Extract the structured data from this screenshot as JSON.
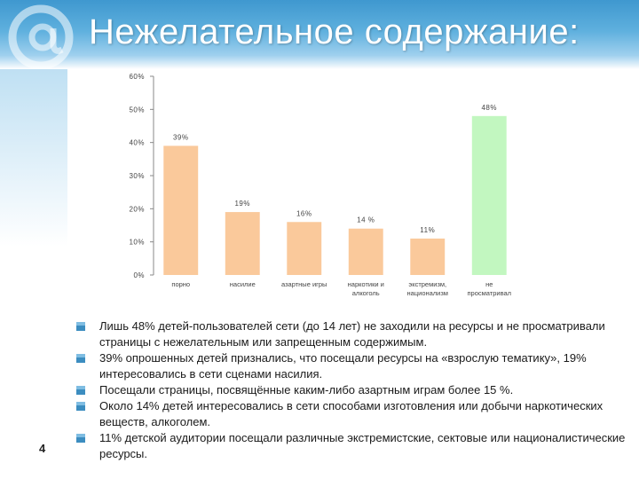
{
  "slide": {
    "title": "Нежелательное содержание:",
    "page_number": "4"
  },
  "bullets": [
    "Лишь 48% детей-пользователей сети (до 14 лет) не заходили на ресурсы и не просматривали страницы с нежелательным или запрещенным содержимым.",
    "39% опрошенных детей признались, что посещали ресурсы на «взрослую тематику», 19% интересовались в сети сценами насилия.",
    "Посещали страницы, посвящённые каким-либо азартным играм более 15 %.",
    "Около 14% детей интересовались в сети способами изготовления или добычи наркотических веществ, алкоголем.",
    "11% детской аудитории посещали различные экстремистские, сектовые или националистические ресурсы."
  ],
  "colors": {
    "bar_main": "#fac99b",
    "bar_highlight": "#c2f7c0",
    "bullet_mark": "#3c8dc0",
    "header": "#4aa3d6"
  },
  "chart_data": {
    "type": "bar",
    "categories": [
      [
        "порно"
      ],
      [
        "насилие"
      ],
      [
        "азартные игры"
      ],
      [
        "наркотики и",
        "алкоголь"
      ],
      [
        "экстремизм,",
        "национализм"
      ],
      [
        "не",
        "просматривал"
      ]
    ],
    "values": [
      39,
      19,
      16,
      14,
      11,
      48
    ],
    "value_labels": [
      "39%",
      "19%",
      "16%",
      "14 %",
      "11%",
      "48%"
    ],
    "highlight_index": 5,
    "y_ticks": [
      "0%",
      "10%",
      "20%",
      "30%",
      "40%",
      "50%",
      "60%"
    ],
    "ylim": [
      0,
      60
    ],
    "title": "",
    "xlabel": "",
    "ylabel": "",
    "grid": false,
    "legend": "none"
  }
}
